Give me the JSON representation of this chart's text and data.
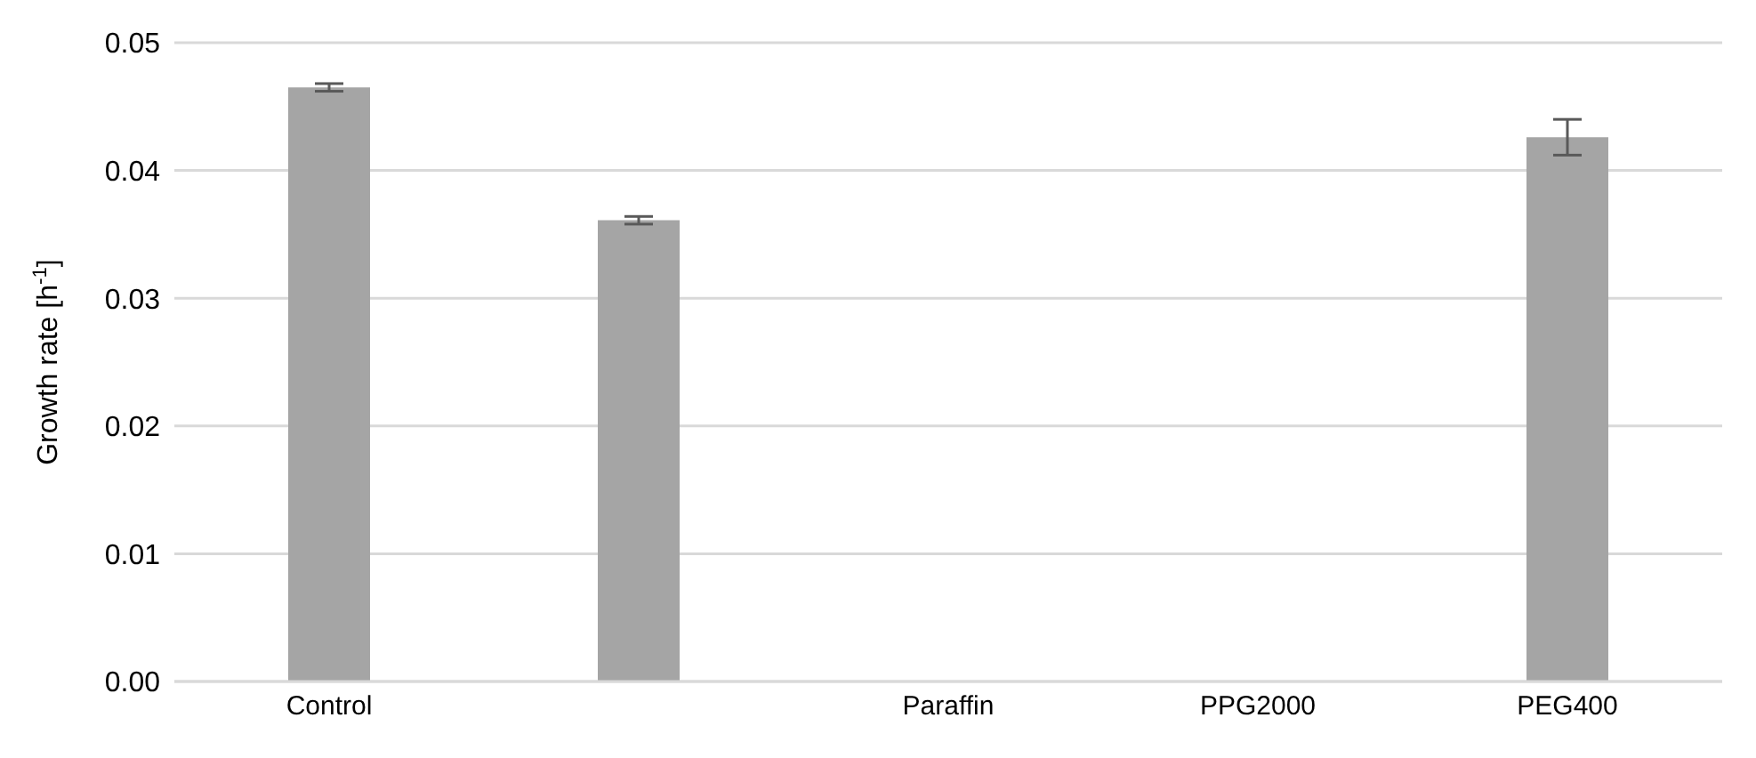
{
  "chart_data": {
    "type": "bar",
    "ylabel": "Growth rate [h$^{-1}$]",
    "categories": [
      "Control",
      null,
      "Paraffin",
      "PPG2000",
      "PEG400"
    ],
    "values": [
      0.0465,
      0.0361,
      0,
      0,
      0.0426
    ],
    "errors": [
      0.0003,
      0.0003,
      null,
      null,
      0.0014
    ],
    "color": "#a5a5a5",
    "ylim": [
      0,
      0.05
    ],
    "yticks": [
      {
        "value": 0,
        "label": "0.00"
      },
      {
        "value": 0.01,
        "label": "0.01"
      },
      {
        "value": 0.02,
        "label": "0.02"
      },
      {
        "value": 0.03,
        "label": "0.03"
      },
      {
        "value": 0.04,
        "label": "0.04"
      },
      {
        "value": 0.05,
        "label": "0.05"
      }
    ],
    "grid": "y"
  }
}
